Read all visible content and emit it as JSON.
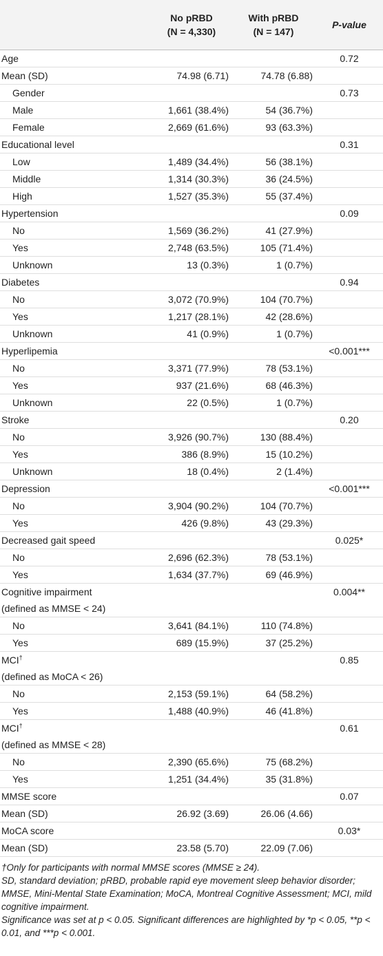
{
  "table": {
    "header": [
      [],
      [
        "No pRBD",
        "(N = 4,330)"
      ],
      [
        "With pRBD",
        "(N = 147)"
      ],
      [
        "P-value"
      ]
    ],
    "rows": [
      {
        "label": [
          "Age"
        ],
        "p": "0.72"
      },
      {
        "label": [
          "Mean (SD)"
        ],
        "values": [
          "74.98 (6.71)",
          "74.78 (6.88)"
        ]
      },
      {
        "label": [
          "Gender"
        ],
        "indent": 1,
        "p": "0.73"
      },
      {
        "label": [
          "Male"
        ],
        "indent": 1,
        "values": [
          "1,661 (38.4%)",
          "54 (36.7%)"
        ]
      },
      {
        "label": [
          "Female"
        ],
        "indent": 1,
        "values": [
          "2,669 (61.6%)",
          "93 (63.3%)"
        ]
      },
      {
        "label": [
          "Educational level"
        ],
        "p": "0.31"
      },
      {
        "label": [
          "Low"
        ],
        "indent": 1,
        "values": [
          "1,489 (34.4%)",
          "56 (38.1%)"
        ]
      },
      {
        "label": [
          "Middle"
        ],
        "indent": 1,
        "values": [
          "1,314 (30.3%)",
          "36 (24.5%)"
        ]
      },
      {
        "label": [
          "High"
        ],
        "indent": 1,
        "values": [
          "1,527 (35.3%)",
          "55 (37.4%)"
        ]
      },
      {
        "label": [
          "Hypertension"
        ],
        "p": "0.09"
      },
      {
        "label": [
          "No"
        ],
        "indent": 1,
        "values": [
          "1,569 (36.2%)",
          "41 (27.9%)"
        ]
      },
      {
        "label": [
          "Yes"
        ],
        "indent": 1,
        "values": [
          "2,748 (63.5%)",
          "105 (71.4%)"
        ]
      },
      {
        "label": [
          "Unknown"
        ],
        "indent": 1,
        "values": [
          "13 (0.3%)",
          "1 (0.7%)"
        ]
      },
      {
        "label": [
          "Diabetes"
        ],
        "p": "0.94"
      },
      {
        "label": [
          "No"
        ],
        "indent": 1,
        "values": [
          "3,072 (70.9%)",
          "104 (70.7%)"
        ]
      },
      {
        "label": [
          "Yes"
        ],
        "indent": 1,
        "values": [
          "1,217 (28.1%)",
          "42 (28.6%)"
        ]
      },
      {
        "label": [
          "Unknown"
        ],
        "indent": 1,
        "values": [
          "41 (0.9%)",
          "1 (0.7%)"
        ]
      },
      {
        "label": [
          "Hyperlipemia"
        ],
        "p": "<0.001***"
      },
      {
        "label": [
          "No"
        ],
        "indent": 1,
        "values": [
          "3,371 (77.9%)",
          "78 (53.1%)"
        ]
      },
      {
        "label": [
          "Yes"
        ],
        "indent": 1,
        "values": [
          "937 (21.6%)",
          "68 (46.3%)"
        ]
      },
      {
        "label": [
          "Unknown"
        ],
        "indent": 1,
        "values": [
          "22 (0.5%)",
          "1 (0.7%)"
        ]
      },
      {
        "label": [
          "Stroke"
        ],
        "p": "0.20"
      },
      {
        "label": [
          "No"
        ],
        "indent": 1,
        "values": [
          "3,926 (90.7%)",
          "130 (88.4%)"
        ]
      },
      {
        "label": [
          "Yes"
        ],
        "indent": 1,
        "values": [
          "386 (8.9%)",
          "15 (10.2%)"
        ]
      },
      {
        "label": [
          "Unknown"
        ],
        "indent": 1,
        "values": [
          "18 (0.4%)",
          "2 (1.4%)"
        ]
      },
      {
        "label": [
          "Depression"
        ],
        "p": "<0.001***"
      },
      {
        "label": [
          "No"
        ],
        "indent": 1,
        "values": [
          "3,904 (90.2%)",
          "104 (70.7%)"
        ]
      },
      {
        "label": [
          "Yes"
        ],
        "indent": 1,
        "values": [
          "426 (9.8%)",
          "43 (29.3%)"
        ]
      },
      {
        "label": [
          "Decreased gait speed"
        ],
        "p": "0.025*"
      },
      {
        "label": [
          "No"
        ],
        "indent": 1,
        "values": [
          "2,696 (62.3%)",
          "78 (53.1%)"
        ]
      },
      {
        "label": [
          "Yes"
        ],
        "indent": 1,
        "values": [
          "1,634 (37.7%)",
          "69 (46.9%)"
        ]
      },
      {
        "label": [
          "Cognitive impairment",
          "(defined as MMSE < 24)"
        ],
        "p": "0.004**"
      },
      {
        "label": [
          "No"
        ],
        "indent": 1,
        "values": [
          "3,641 (84.1%)",
          "110 (74.8%)"
        ]
      },
      {
        "label": [
          "Yes"
        ],
        "indent": 1,
        "values": [
          "689 (15.9%)",
          "37 (25.2%)"
        ]
      },
      {
        "label": [
          "MCI",
          "(defined as MoCA < 26)"
        ],
        "sup": "†",
        "p": "0.85"
      },
      {
        "label": [
          "No"
        ],
        "indent": 1,
        "values": [
          "2,153 (59.1%)",
          "64 (58.2%)"
        ]
      },
      {
        "label": [
          "Yes"
        ],
        "indent": 1,
        "values": [
          "1,488 (40.9%)",
          "46 (41.8%)"
        ]
      },
      {
        "label": [
          "MCI",
          "(defined as MMSE < 28)"
        ],
        "sup": "†",
        "p": "0.61"
      },
      {
        "label": [
          "No"
        ],
        "indent": 1,
        "values": [
          "2,390 (65.6%)",
          "75 (68.2%)"
        ]
      },
      {
        "label": [
          "Yes"
        ],
        "indent": 1,
        "values": [
          "1,251 (34.4%)",
          "35 (31.8%)"
        ]
      },
      {
        "label": [
          "MMSE score"
        ],
        "p": "0.07"
      },
      {
        "label": [
          "Mean (SD)"
        ],
        "values": [
          "26.92 (3.69)",
          "26.06 (4.66)"
        ]
      },
      {
        "label": [
          "MoCA score"
        ],
        "p": "0.03*"
      },
      {
        "label": [
          "Mean (SD)"
        ],
        "values": [
          "23.58 (5.70)",
          "22.09 (7.06)"
        ]
      }
    ],
    "footnotes": [
      "†Only for participants with normal MMSE scores (MMSE ≥ 24).",
      "SD, standard deviation; pRBD, probable rapid eye movement sleep behavior disorder; MMSE, Mini-Mental State Examination; MoCA, Montreal Cognitive Assessment; MCI, mild cognitive impairment.",
      "Significance was set at p < 0.05. Significant differences are highlighted by *p < 0.05, **p < 0.01, and ***p < 0.001."
    ]
  }
}
